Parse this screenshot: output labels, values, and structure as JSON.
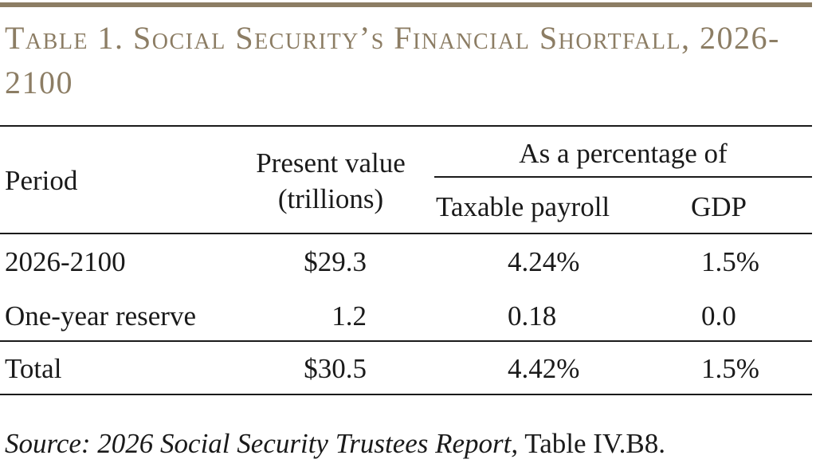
{
  "table": {
    "title": "Table 1. Social Security’s Financial Shortfall, 2026-2100",
    "headers": {
      "period": "Period",
      "present_value_line1": "Present value",
      "present_value_line2": "(trillions)",
      "percentage_group": "As a percentage of",
      "taxable_payroll": "Taxable payroll",
      "gdp": "GDP"
    },
    "rows": [
      {
        "period": "2026-2100",
        "present_value": "$29.3",
        "taxable_payroll": "4.24%",
        "gdp": "1.5%"
      },
      {
        "period": "One-year reserve",
        "present_value": "1.2",
        "taxable_payroll": "0.18",
        "gdp": "0.0"
      },
      {
        "period": "Total",
        "present_value": "$30.5",
        "taxable_payroll": "4.42%",
        "gdp": "1.5%"
      }
    ]
  },
  "source": {
    "italic_text": "Source: 2026 Social Security Trustees Report,",
    "plain_text": " Table IV.B8."
  },
  "colors": {
    "accent": "#8c7d64",
    "text": "#1a1a1a"
  }
}
